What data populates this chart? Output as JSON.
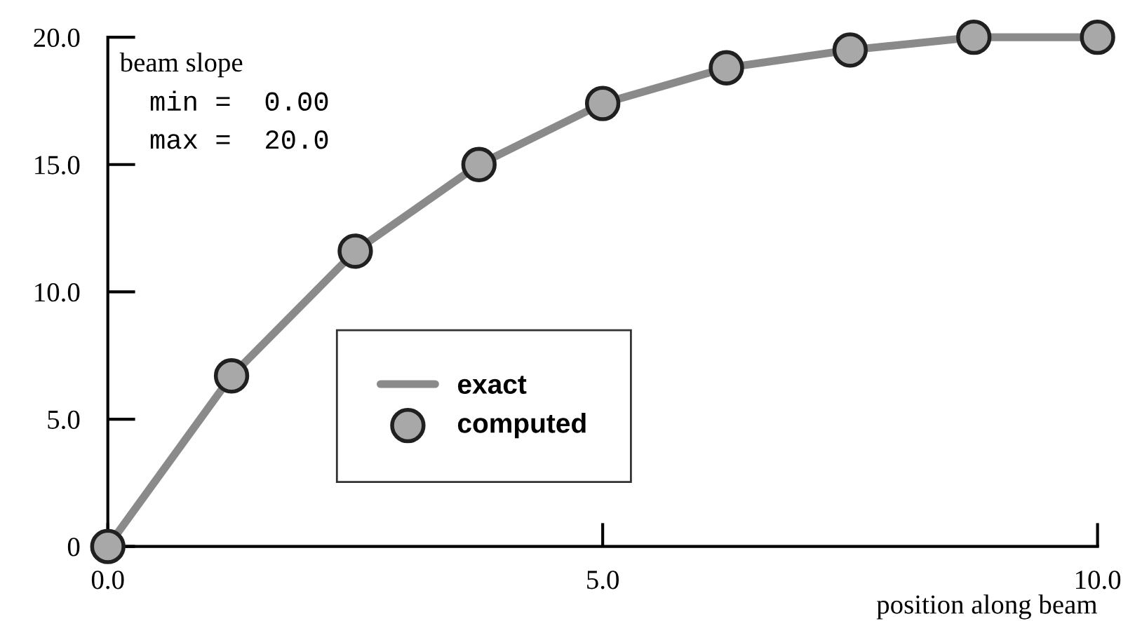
{
  "chart_data": {
    "type": "line",
    "xlabel": "position along beam",
    "x": [
      0,
      1.25,
      2.5,
      3.75,
      5,
      6.25,
      7.5,
      8.75,
      10
    ],
    "series": [
      {
        "name": "exact",
        "color": "#8a8a8a",
        "marker": "none",
        "values": [
          0,
          6.7,
          11.6,
          15.0,
          17.4,
          18.8,
          19.5,
          20,
          20
        ]
      },
      {
        "name": "computed",
        "type": "scatter",
        "color": "#a8a8a8",
        "marker": "circle",
        "values": [
          0,
          6.7,
          11.6,
          15.0,
          17.4,
          18.8,
          19.5,
          20,
          20
        ]
      }
    ],
    "xlim": [
      0,
      10
    ],
    "ylim": [
      0,
      20
    ],
    "xticks": [
      {
        "value": 0,
        "label": "0.0"
      },
      {
        "value": 5,
        "label": "5.0"
      },
      {
        "value": 10,
        "label": "10.0"
      }
    ],
    "yticks": [
      0,
      {
        "value": 5,
        "label": "5.0"
      },
      {
        "value": 10,
        "label": "10.0"
      },
      {
        "value": 15,
        "label": "15.0"
      },
      {
        "value": 20,
        "label": "20.0"
      }
    ],
    "annotations": [
      "beam slope",
      "min =  0.00",
      "max =  20.0"
    ],
    "legend": "bottom",
    "grid": false
  }
}
